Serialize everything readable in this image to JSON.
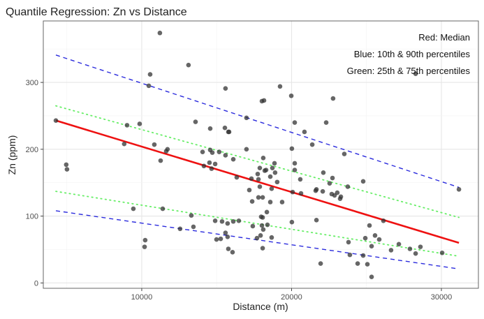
{
  "chart_data": {
    "type": "scatter",
    "title": "Quantile Regression: Zn vs Distance",
    "xlabel": "Distance (m)",
    "ylabel": "Zn (ppm)",
    "xlim": [
      3430,
      32470
    ],
    "ylim": [
      -8,
      392
    ],
    "xticks": [
      10000,
      20000,
      30000
    ],
    "yticks": [
      0,
      100,
      200,
      300
    ],
    "grid": true,
    "annotations": [
      "Red: Median",
      "Blue: 10th & 90th percentiles",
      "Green: 25th & 75th percentiles"
    ],
    "annotation_placement": "top-right",
    "point_color": "#333333",
    "points": [
      [
        4270,
        243
      ],
      [
        4960,
        177
      ],
      [
        5010,
        170
      ],
      [
        8830,
        208
      ],
      [
        9020,
        236
      ],
      [
        9440,
        111
      ],
      [
        9860,
        238
      ],
      [
        10190,
        54
      ],
      [
        10230,
        64
      ],
      [
        10470,
        295
      ],
      [
        10560,
        312
      ],
      [
        10840,
        207
      ],
      [
        11210,
        374
      ],
      [
        11260,
        183
      ],
      [
        11400,
        111
      ],
      [
        11630,
        197
      ],
      [
        11720,
        200
      ],
      [
        12560,
        81
      ],
      [
        13120,
        326
      ],
      [
        13310,
        101
      ],
      [
        13450,
        84
      ],
      [
        13590,
        241
      ],
      [
        14060,
        196
      ],
      [
        14150,
        175
      ],
      [
        14520,
        180
      ],
      [
        14570,
        231
      ],
      [
        14570,
        199
      ],
      [
        14660,
        171
      ],
      [
        14710,
        195
      ],
      [
        14900,
        178
      ],
      [
        14900,
        93
      ],
      [
        14990,
        65
      ],
      [
        15170,
        196
      ],
      [
        15270,
        66
      ],
      [
        15360,
        92
      ],
      [
        15550,
        232
      ],
      [
        15590,
        291
      ],
      [
        15590,
        191
      ],
      [
        15590,
        75
      ],
      [
        15730,
        89
      ],
      [
        15730,
        69
      ],
      [
        15780,
        226
      ],
      [
        15780,
        51
      ],
      [
        15830,
        226
      ],
      [
        16060,
        46
      ],
      [
        16110,
        185
      ],
      [
        16110,
        92
      ],
      [
        16340,
        158
      ],
      [
        16480,
        93
      ],
      [
        16990,
        247
      ],
      [
        16990,
        200
      ],
      [
        17180,
        139
      ],
      [
        17320,
        156
      ],
      [
        17370,
        122
      ],
      [
        17410,
        85
      ],
      [
        17690,
        67
      ],
      [
        17740,
        163
      ],
      [
        17790,
        155
      ],
      [
        17790,
        128
      ],
      [
        17880,
        144
      ],
      [
        17880,
        172
      ],
      [
        17930,
        71
      ],
      [
        17970,
        99
      ],
      [
        18020,
        272
      ],
      [
        18020,
        86
      ],
      [
        18070,
        128
      ],
      [
        18070,
        98
      ],
      [
        18070,
        52
      ],
      [
        18110,
        187
      ],
      [
        18110,
        80
      ],
      [
        18160,
        273
      ],
      [
        18210,
        168
      ],
      [
        18300,
        169
      ],
      [
        18350,
        106
      ],
      [
        18390,
        87
      ],
      [
        18580,
        159
      ],
      [
        18580,
        121
      ],
      [
        18670,
        141
      ],
      [
        18670,
        68
      ],
      [
        18720,
        172
      ],
      [
        18860,
        179
      ],
      [
        18900,
        165
      ],
      [
        19040,
        151
      ],
      [
        19230,
        294
      ],
      [
        19370,
        121
      ],
      [
        19980,
        280
      ],
      [
        20020,
        201
      ],
      [
        20020,
        91
      ],
      [
        20070,
        136
      ],
      [
        20210,
        240
      ],
      [
        20210,
        179
      ],
      [
        20210,
        169
      ],
      [
        20580,
        155
      ],
      [
        20630,
        134
      ],
      [
        20860,
        226
      ],
      [
        21380,
        207
      ],
      [
        21610,
        138
      ],
      [
        21660,
        140
      ],
      [
        21660,
        94
      ],
      [
        21940,
        29
      ],
      [
        22080,
        137
      ],
      [
        22120,
        165
      ],
      [
        22310,
        240
      ],
      [
        22540,
        149
      ],
      [
        22680,
        133
      ],
      [
        22730,
        157
      ],
      [
        22770,
        276
      ],
      [
        22870,
        131
      ],
      [
        23050,
        135
      ],
      [
        23240,
        126
      ],
      [
        23290,
        129
      ],
      [
        23520,
        193
      ],
      [
        23750,
        144
      ],
      [
        23800,
        61
      ],
      [
        23890,
        42
      ],
      [
        24410,
        29
      ],
      [
        24780,
        152
      ],
      [
        24780,
        41
      ],
      [
        24920,
        67
      ],
      [
        25060,
        28
      ],
      [
        25200,
        86
      ],
      [
        25340,
        55
      ],
      [
        25340,
        9
      ],
      [
        25570,
        71
      ],
      [
        25850,
        65
      ],
      [
        26130,
        93
      ],
      [
        26640,
        49
      ],
      [
        27160,
        58
      ],
      [
        27900,
        51
      ],
      [
        28280,
        313
      ],
      [
        28280,
        44
      ],
      [
        28600,
        54
      ],
      [
        30050,
        45
      ],
      [
        31170,
        140
      ]
    ],
    "series": [
      {
        "quantile": 0.9,
        "color": "#2b2bdd",
        "style": "dashed",
        "x": [
          4270,
          31170
        ],
        "y": [
          341,
          143
        ]
      },
      {
        "quantile": 0.75,
        "color": "#66ee66",
        "style": "dotted",
        "x": [
          4270,
          31170
        ],
        "y": [
          265,
          98
        ]
      },
      {
        "quantile": 0.5,
        "color": "#ee1111",
        "style": "solid",
        "x": [
          4270,
          31170
        ],
        "y": [
          243,
          60
        ]
      },
      {
        "quantile": 0.25,
        "color": "#66ee66",
        "style": "dotted",
        "x": [
          4270,
          31170
        ],
        "y": [
          137,
          40
        ]
      },
      {
        "quantile": 0.1,
        "color": "#2b2bdd",
        "style": "dashed",
        "x": [
          4270,
          31170
        ],
        "y": [
          108,
          21
        ]
      }
    ]
  }
}
